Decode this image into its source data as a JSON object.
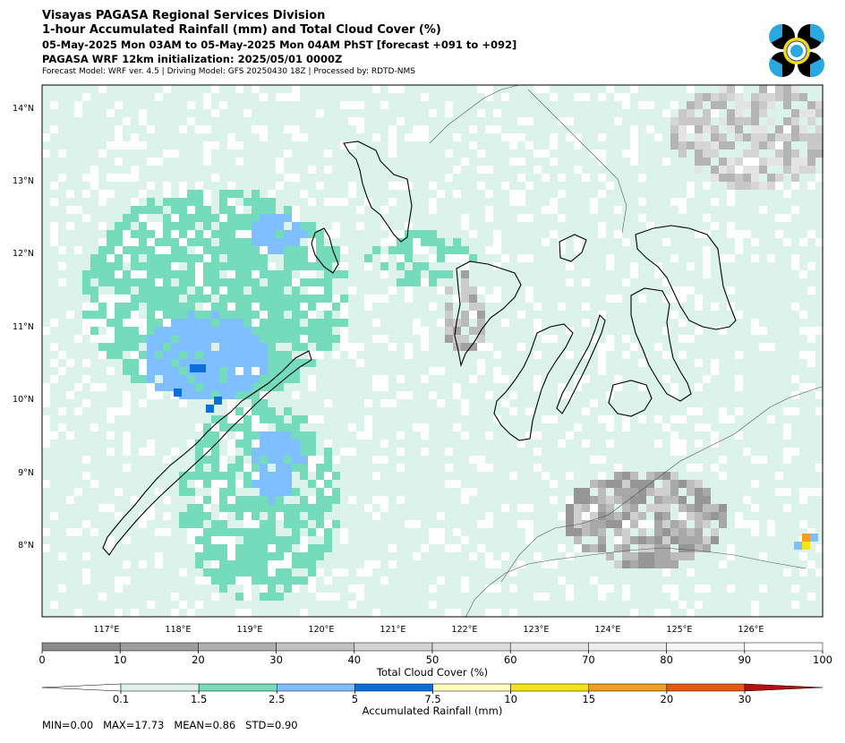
{
  "header": {
    "line1": "Visayas PAGASA Regional Services Division",
    "line2": "1-hour Accumulated Rainfall (mm) and Total Cloud Cover (%)",
    "line3": "05-May-2025 Mon 03AM to 05-May-2025 Mon 04AM PhST [forecast +091 to +092]",
    "line4": "PAGASA WRF 12km initialization: 2025/05/01 0000Z",
    "line5": "Forecast Model: WRF ver. 4.5 | Driving Model: GFS 20250430 18Z | Processed by: RDTD-NMS"
  },
  "map": {
    "lon_ticks": [
      "117°E",
      "118°E",
      "119°E",
      "120°E",
      "121°E",
      "122°E",
      "123°E",
      "124°E",
      "125°E",
      "126°E"
    ],
    "lat_ticks": [
      "14°N",
      "13°N",
      "12°N",
      "11°N",
      "10°N",
      "9°N",
      "8°N"
    ],
    "lon_range": [
      116.0,
      126.85
    ],
    "lat_range": [
      7.05,
      14.35
    ],
    "ocean_color": "#ffffff",
    "land_fill": "#ffffff"
  },
  "cloud_colorbar": {
    "label": "Total Cloud Cover (%)",
    "ticks": [
      "0",
      "10",
      "20",
      "30",
      "40",
      "50",
      "60",
      "70",
      "80",
      "90",
      "100"
    ],
    "colors": [
      "#8c8c8c",
      "#9e9e9e",
      "#b0b0b0",
      "#c2c2c2",
      "#d4d4d4",
      "#dcdcdc",
      "#e6e6e6",
      "#eeeeee",
      "#f6f6f6",
      "#ffffff"
    ]
  },
  "rain_colorbar": {
    "label": "Accumulated Rainfall (mm)",
    "ticks": [
      "0.1",
      "1.5",
      "2.5",
      "5",
      "7.5",
      "10",
      "15",
      "20",
      "30"
    ],
    "colors": [
      "#ffffff",
      "#dcf3ec",
      "#74dbbb",
      "#7fbfff",
      "#0a6fdc",
      "#ffffc0",
      "#f5e31a",
      "#f0a020",
      "#e85810",
      "#b41010"
    ]
  },
  "stats": "MIN=0.00   MAX=17.73   MEAN=0.86   STD=0.90"
}
